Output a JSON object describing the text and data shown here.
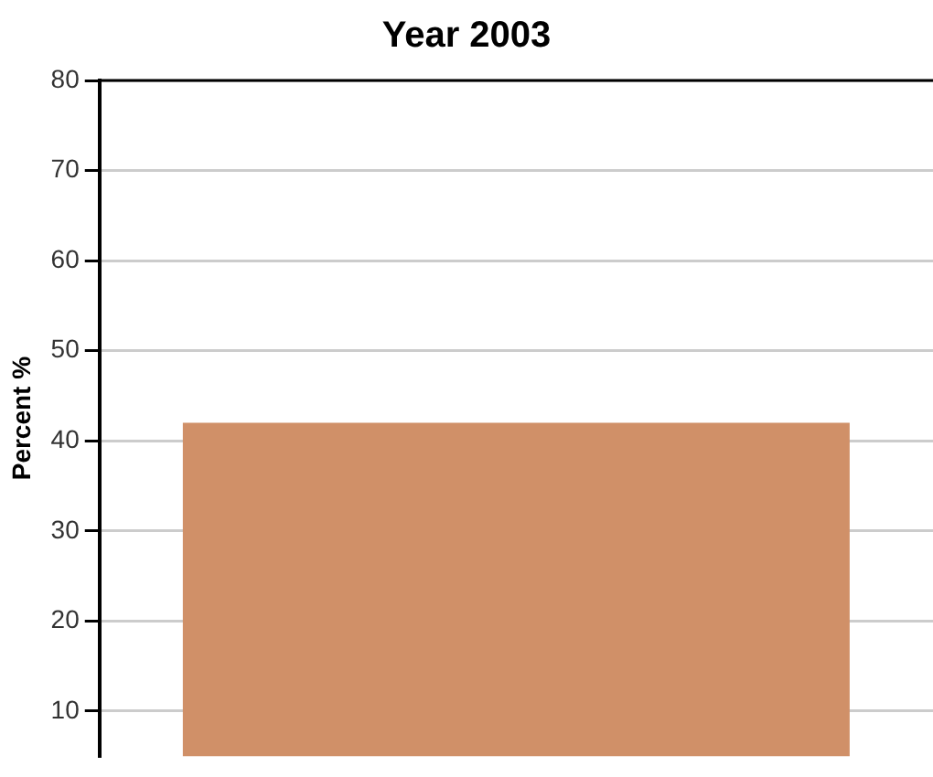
{
  "chart_data": {
    "type": "bar",
    "title": "Year 2003",
    "ylabel": "Percent %",
    "categories": [
      null
    ],
    "values": [
      42
    ],
    "color": "#d09068",
    "ylim": [
      5,
      80
    ],
    "yticks": [
      10,
      20,
      30,
      40,
      50,
      60,
      70,
      80
    ],
    "grid": "y",
    "legend": false
  }
}
